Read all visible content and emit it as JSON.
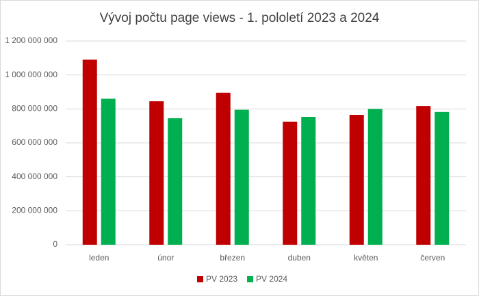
{
  "chart_data": {
    "type": "bar",
    "title": "Vývoj počtu page views - 1. pololetí 2023 a 2024",
    "categories": [
      "leden",
      "únor",
      "březen",
      "duben",
      "květen",
      "červen"
    ],
    "series": [
      {
        "name": "PV 2023",
        "color": "#c00000",
        "values": [
          1090000000,
          845000000,
          895000000,
          725000000,
          765000000,
          817000000
        ]
      },
      {
        "name": "PV 2024",
        "color": "#00b050",
        "values": [
          860000000,
          745000000,
          795000000,
          753000000,
          800000000,
          782000000
        ]
      }
    ],
    "ylim": [
      0,
      1200000000
    ],
    "yticks": [
      0,
      {
        "value": 200000000,
        "label": "200 000 000"
      },
      {
        "value": 400000000,
        "label": "400 000 000"
      },
      {
        "value": 600000000,
        "label": "600 000 000"
      },
      {
        "value": 800000000,
        "label": "800 000 000"
      },
      {
        "value": 1000000000,
        "label": "1 000 000 000"
      },
      {
        "value": 1200000000,
        "label": "1 200 000 000"
      }
    ],
    "grid": true,
    "legend": "bottom"
  }
}
